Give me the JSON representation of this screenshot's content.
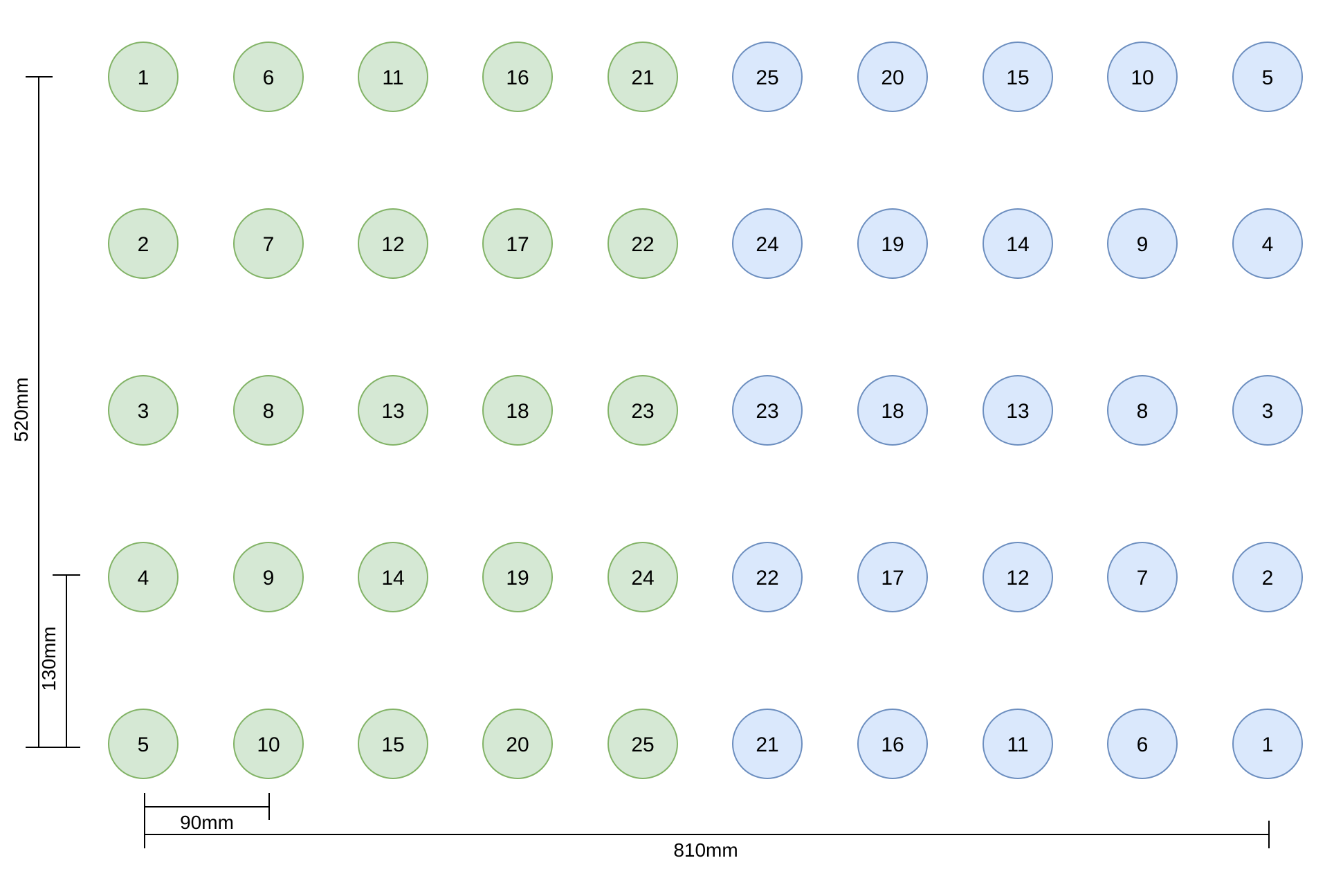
{
  "colors": {
    "green_fill": "#d5e8d4",
    "green_stroke": "#82b366",
    "blue_fill": "#dae8fc",
    "blue_stroke": "#6c8ebf",
    "line": "#000000"
  },
  "grid": {
    "rows": [
      {
        "green": [
          "1",
          "6",
          "11",
          "16",
          "21"
        ],
        "blue": [
          "25",
          "20",
          "15",
          "10",
          "5"
        ]
      },
      {
        "green": [
          "2",
          "7",
          "12",
          "17",
          "22"
        ],
        "blue": [
          "24",
          "19",
          "14",
          "9",
          "4"
        ]
      },
      {
        "green": [
          "3",
          "8",
          "13",
          "18",
          "23"
        ],
        "blue": [
          "23",
          "18",
          "13",
          "8",
          "3"
        ]
      },
      {
        "green": [
          "4",
          "9",
          "14",
          "19",
          "24"
        ],
        "blue": [
          "22",
          "17",
          "12",
          "7",
          "2"
        ]
      },
      {
        "green": [
          "5",
          "10",
          "15",
          "20",
          "25"
        ],
        "blue": [
          "21",
          "16",
          "11",
          "6",
          "1"
        ]
      }
    ]
  },
  "dimensions": {
    "total_height": "520mm",
    "row_pitch": "130mm",
    "column_pitch": "90mm",
    "total_width": "810mm"
  }
}
